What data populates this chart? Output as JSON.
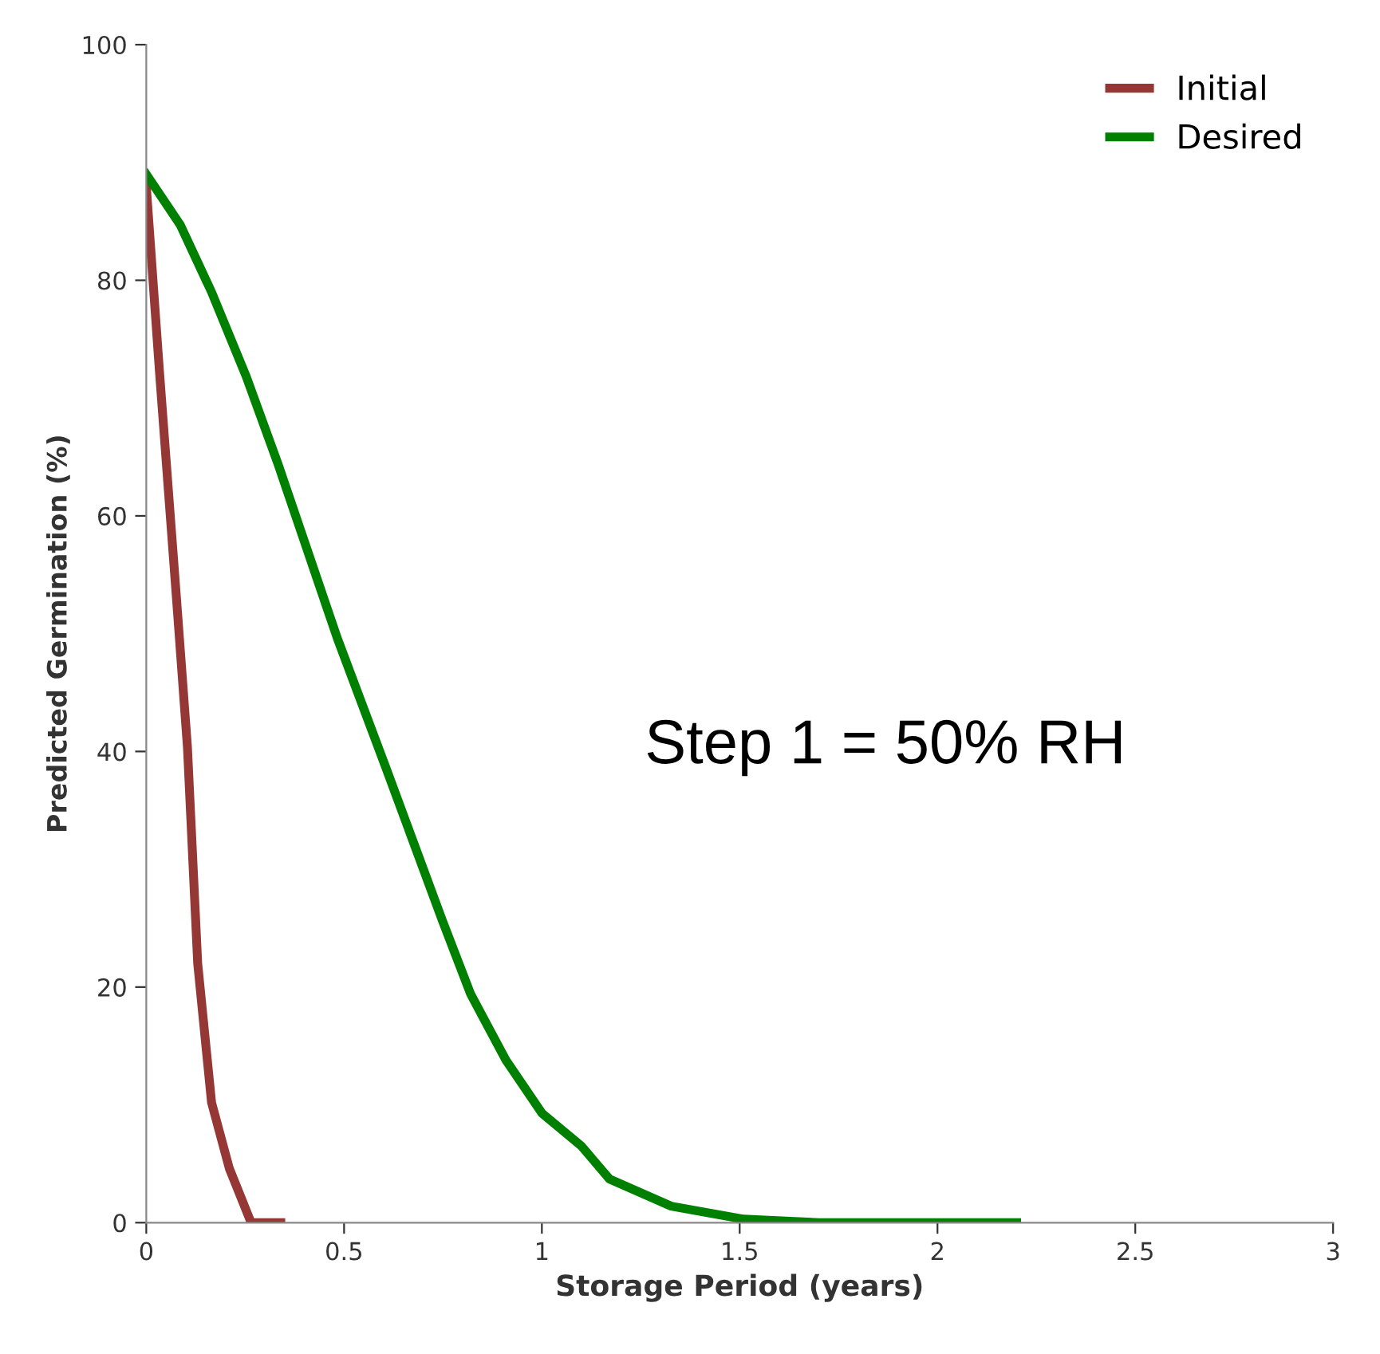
{
  "chart_data": {
    "type": "line",
    "xlabel": "Storage Period (years)",
    "ylabel": "Predicted Germination (%)",
    "xlim": [
      0,
      3
    ],
    "xticks": [
      0,
      0.5,
      1,
      1.5,
      2,
      2.5,
      3
    ],
    "ylim": [
      0,
      100
    ],
    "yticks": [
      0,
      20,
      40,
      60,
      80,
      100
    ],
    "grid": false,
    "legend": "top right",
    "marker": "none",
    "line_style": "solid",
    "annotations": [
      "Step 1 = 50% RH"
    ],
    "series": [
      {
        "name": "Initial",
        "color": "#953735",
        "x": [
          0,
          0.033,
          0.077,
          0.104,
          0.13,
          0.165,
          0.21,
          0.265,
          0.34
        ],
        "values": [
          88,
          72.4,
          52.7,
          40.4,
          22,
          10.2,
          4.6,
          0,
          0
        ]
      },
      {
        "name": "Desired",
        "color": "#008000",
        "x": [
          0,
          0.086,
          0.165,
          0.253,
          0.333,
          0.483,
          0.607,
          0.749,
          0.82,
          0.909,
          1.0,
          1.1,
          1.171,
          1.327,
          1.51,
          1.7,
          2.2
        ],
        "values": [
          89,
          84.7,
          79,
          71.8,
          64.4,
          49.6,
          38.5,
          25.6,
          19.4,
          13.8,
          9.3,
          6.5,
          3.7,
          1.4,
          0.3,
          0,
          0
        ]
      }
    ]
  }
}
